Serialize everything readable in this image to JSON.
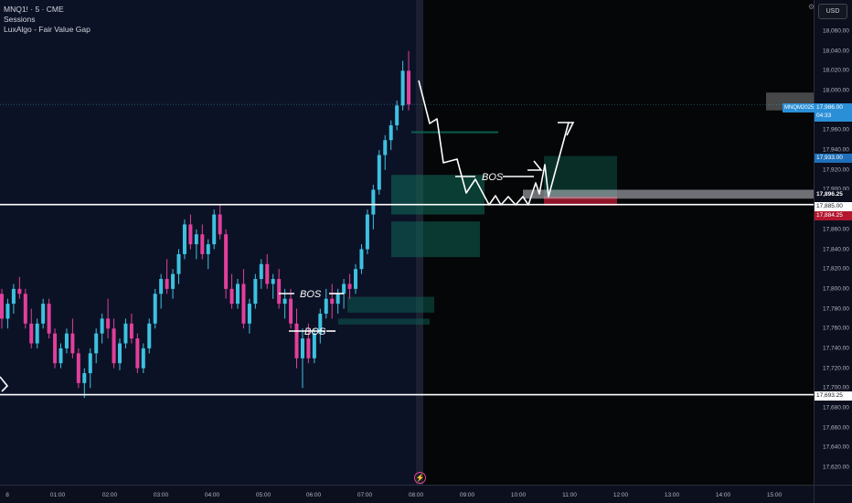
{
  "legend": {
    "symbol_line": "MNQ1! · 5 · CME",
    "indicator_1": "Sessions",
    "indicator_2": "LuxAlgo - Fair Value Gap"
  },
  "price_axis": {
    "currency": "USD",
    "ticks": [
      "18,060.00",
      "18,040.00",
      "18,020.00",
      "18,000.00",
      "17,980.00",
      "17,960.00",
      "17,940.00",
      "17,920.00",
      "17,900.00",
      "17,880.00",
      "17,860.00",
      "17,840.00",
      "17,820.00",
      "17,800.00",
      "17,780.00",
      "17,760.00",
      "17,740.00",
      "17,720.00",
      "17,700.00",
      "17,680.00",
      "17,660.00",
      "17,640.00",
      "17,620.00"
    ]
  },
  "time_axis": {
    "ticks": [
      "8",
      "01:00",
      "02:00",
      "03:00",
      "04:00",
      "05:00",
      "06:00",
      "07:00",
      "08:00",
      "09:00",
      "10:00",
      "11:00",
      "12:00",
      "13:00",
      "14:00",
      "15:00"
    ]
  },
  "price_tags": {
    "ticker": "MNQM2025",
    "last_price": "17,986.00",
    "countdown": "04:33",
    "blue_level": "17,933.00",
    "level_1": "17,896.25",
    "level_2": "17,885.00",
    "red_level": "17,884.25",
    "level_3": "17,693.25"
  },
  "annotations": {
    "bos_1": "BOS",
    "bos_2": "BOS",
    "bos_3": "BOS"
  },
  "colors": {
    "bull": "#3ec1e0",
    "bear": "#e0409a",
    "fvg": "#0e6b5a",
    "level_line": "#ffffff"
  },
  "chart_data": {
    "type": "candlestick",
    "symbol": "MNQ1!",
    "interval": "5",
    "exchange": "CME",
    "ylim": [
      17610,
      18070
    ],
    "x_time_ticks": [
      "01:00",
      "02:00",
      "03:00",
      "04:00",
      "05:00",
      "06:00",
      "07:00",
      "08:00",
      "09:00",
      "10:00",
      "11:00",
      "12:00",
      "13:00",
      "14:00",
      "15:00"
    ],
    "horizontal_levels": [
      17885.0,
      17693.25
    ],
    "last_price": 17986.0,
    "candles_ohlc": [
      [
        17795,
        17800,
        17760,
        17770
      ],
      [
        17770,
        17790,
        17760,
        17785
      ],
      [
        17785,
        17805,
        17775,
        17800
      ],
      [
        17800,
        17812,
        17790,
        17795
      ],
      [
        17795,
        17800,
        17760,
        17765
      ],
      [
        17765,
        17780,
        17740,
        17745
      ],
      [
        17745,
        17770,
        17740,
        17765
      ],
      [
        17765,
        17790,
        17760,
        17785
      ],
      [
        17785,
        17790,
        17750,
        17755
      ],
      [
        17755,
        17760,
        17720,
        17725
      ],
      [
        17725,
        17745,
        17720,
        17740
      ],
      [
        17740,
        17760,
        17735,
        17755
      ],
      [
        17755,
        17770,
        17730,
        17735
      ],
      [
        17735,
        17740,
        17700,
        17705
      ],
      [
        17705,
        17720,
        17690,
        17715
      ],
      [
        17715,
        17740,
        17700,
        17735
      ],
      [
        17735,
        17760,
        17725,
        17755
      ],
      [
        17755,
        17775,
        17745,
        17770
      ],
      [
        17770,
        17790,
        17750,
        17760
      ],
      [
        17760,
        17770,
        17720,
        17725
      ],
      [
        17725,
        17750,
        17718,
        17745
      ],
      [
        17745,
        17770,
        17740,
        17765
      ],
      [
        17765,
        17775,
        17745,
        17750
      ],
      [
        17750,
        17755,
        17715,
        17720
      ],
      [
        17720,
        17745,
        17715,
        17740
      ],
      [
        17740,
        17770,
        17735,
        17765
      ],
      [
        17765,
        17800,
        17760,
        17795
      ],
      [
        17795,
        17815,
        17780,
        17810
      ],
      [
        17810,
        17830,
        17795,
        17800
      ],
      [
        17800,
        17820,
        17790,
        17815
      ],
      [
        17815,
        17840,
        17805,
        17835
      ],
      [
        17835,
        17870,
        17830,
        17865
      ],
      [
        17865,
        17875,
        17840,
        17845
      ],
      [
        17845,
        17860,
        17830,
        17855
      ],
      [
        17855,
        17865,
        17830,
        17835
      ],
      [
        17835,
        17850,
        17820,
        17845
      ],
      [
        17845,
        17880,
        17840,
        17875
      ],
      [
        17875,
        17885,
        17850,
        17855
      ],
      [
        17855,
        17860,
        17790,
        17800
      ],
      [
        17800,
        17815,
        17780,
        17785
      ],
      [
        17785,
        17810,
        17780,
        17805
      ],
      [
        17805,
        17820,
        17760,
        17765
      ],
      [
        17765,
        17790,
        17755,
        17785
      ],
      [
        17785,
        17815,
        17780,
        17810
      ],
      [
        17810,
        17830,
        17800,
        17825
      ],
      [
        17825,
        17835,
        17800,
        17805
      ],
      [
        17805,
        17815,
        17790,
        17810
      ],
      [
        17810,
        17820,
        17780,
        17785
      ],
      [
        17785,
        17800,
        17770,
        17790
      ],
      [
        17790,
        17800,
        17760,
        17765
      ],
      [
        17765,
        17780,
        17720,
        17730
      ],
      [
        17730,
        17760,
        17700,
        17750
      ],
      [
        17750,
        17765,
        17725,
        17730
      ],
      [
        17730,
        17760,
        17725,
        17755
      ],
      [
        17755,
        17780,
        17745,
        17775
      ],
      [
        17775,
        17800,
        17770,
        17790
      ],
      [
        17790,
        17805,
        17770,
        17785
      ],
      [
        17785,
        17800,
        17775,
        17795
      ],
      [
        17795,
        17810,
        17780,
        17805
      ],
      [
        17805,
        17815,
        17790,
        17800
      ],
      [
        17800,
        17825,
        17795,
        17820
      ],
      [
        17820,
        17845,
        17815,
        17840
      ],
      [
        17840,
        17880,
        17835,
        17875
      ],
      [
        17875,
        17905,
        17860,
        17900
      ],
      [
        17900,
        17940,
        17895,
        17935
      ],
      [
        17935,
        17955,
        17920,
        17950
      ],
      [
        17950,
        17970,
        17940,
        17965
      ],
      [
        17965,
        17990,
        17960,
        17985
      ],
      [
        17985,
        18030,
        17980,
        18020
      ],
      [
        18020,
        18040,
        17980,
        17986
      ]
    ]
  }
}
